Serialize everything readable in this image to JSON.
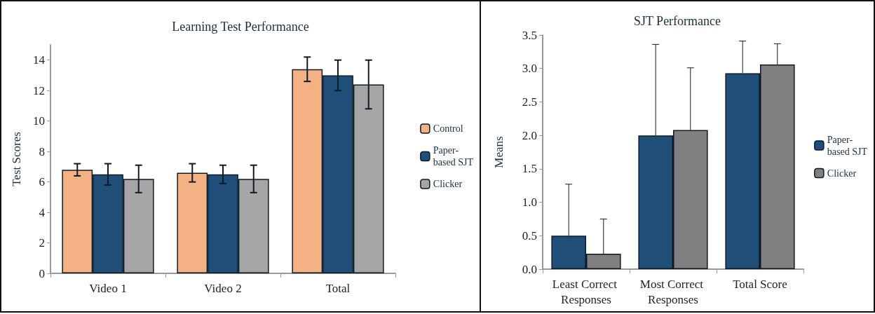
{
  "chart_data": [
    {
      "type": "bar",
      "title": "Learning Test Performance",
      "ylabel": "Test Scores",
      "categories": [
        "Video 1",
        "Video 2",
        "Total"
      ],
      "ylim": [
        0,
        15
      ],
      "yticks": [
        0,
        2,
        4,
        6,
        8,
        10,
        12,
        14
      ],
      "grid": false,
      "legend": "right",
      "series": [
        {
          "name": "Control",
          "color": "#f4b183",
          "values": [
            6.8,
            6.6,
            13.4
          ],
          "errors": [
            0.4,
            0.6,
            0.8
          ]
        },
        {
          "name": "Paper-based SJT",
          "color": "#1f4e79",
          "values": [
            6.5,
            6.5,
            13.0
          ],
          "errors": [
            0.7,
            0.6,
            1.0
          ]
        },
        {
          "name": "Clicker",
          "color": "#a6a6a6",
          "values": [
            6.2,
            6.2,
            12.4
          ],
          "errors": [
            0.9,
            0.9,
            1.6
          ]
        }
      ]
    },
    {
      "type": "bar",
      "title": "SJT Performance",
      "ylabel": "Means",
      "categories": [
        "Least Correct Responses",
        "Most Correct Responses",
        "Total Score"
      ],
      "ylim": [
        0,
        3.5
      ],
      "yticks": [
        {
          "value": 0,
          "label": "0.0"
        },
        0.5,
        {
          "value": 1,
          "label": "1.0"
        },
        1.5,
        {
          "value": 2,
          "label": "2.0"
        },
        2.5,
        {
          "value": 3,
          "label": "3.0"
        },
        3.5
      ],
      "grid": false,
      "legend": "right",
      "series": [
        {
          "name": "Paper-based SJT",
          "color": "#1f4e79",
          "values": [
            0.5,
            2.0,
            2.93
          ],
          "errors": [
            [
              0.5,
              1.27
            ],
            [
              2.0,
              3.36
            ],
            [
              2.93,
              3.41
            ]
          ]
        },
        {
          "name": "Clicker",
          "color": "#808080",
          "values": [
            0.23,
            2.08,
            3.06
          ],
          "errors": [
            [
              0.23,
              0.75
            ],
            [
              2.08,
              3.01
            ],
            [
              3.06,
              3.37
            ]
          ]
        }
      ]
    }
  ]
}
